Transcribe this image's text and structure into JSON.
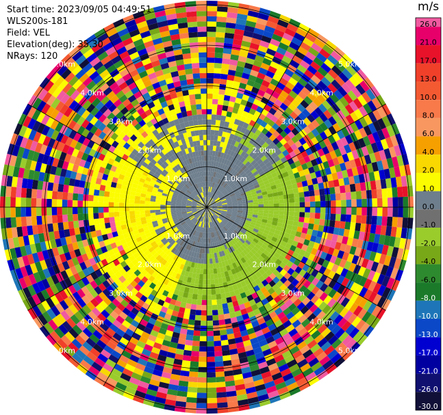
{
  "info": {
    "start_time": "Start time: 2023/09/05 04:49:51",
    "instrument": "WLS200s-181",
    "field": "Field: VEL",
    "elevation": "Elevation(deg): 35.30",
    "nrays": "NRays: 120"
  },
  "colorbar": {
    "title": "m/s",
    "ticks": [
      "26.0",
      "21.0",
      "17.0",
      "13.0",
      "10.0",
      "8.0",
      "6.0",
      "4.0",
      "2.0",
      "1.0",
      "0.0",
      "-1.0",
      "-2.0",
      "-4.0",
      "-6.0",
      "-8.0",
      "-10.0",
      "-13.0",
      "-17.0",
      "-21.0",
      "-26.0",
      "-30.0"
    ],
    "colors": [
      "#f05aa0",
      "#e8006a",
      "#e8122a",
      "#f0402a",
      "#f45a32",
      "#f87a4a",
      "#f89860",
      "#f6a000",
      "#f8d800",
      "#fcfc00",
      "#6e7e8c",
      "#707070",
      "#9acc2c",
      "#78a818",
      "#2e8a2e",
      "#1a7a2a",
      "#1e76b8",
      "#0a48c8",
      "#0000d0",
      "#0000a0",
      "#101070",
      "#101038"
    ]
  },
  "chart_data": {
    "type": "heatmap",
    "projection": "polar-ppi",
    "n_rays": 120,
    "range_rings_km": [
      1.0,
      2.0,
      3.0,
      4.0,
      5.0
    ],
    "ring_labels": [
      "1.0km",
      "2.0km",
      "3.0km",
      "4.0km",
      "5.0km"
    ],
    "max_range_km": 5.1,
    "value_unit": "m/s",
    "value_range": [
      -30,
      26
    ],
    "field": "VEL",
    "regions": [
      {
        "description": "near-field low velocity",
        "range_km": [
          0,
          1.5
        ],
        "value": 0.0
      },
      {
        "description": "southeast/south sector light negative",
        "range_km": [
          1.0,
          2.3
        ],
        "azimuth_deg": [
          60,
          200
        ],
        "value": -2.0
      },
      {
        "description": "northwest sector light positive",
        "range_km": [
          1.0,
          2.8
        ],
        "azimuth_deg": [
          200,
          360
        ],
        "value": 2.0
      },
      {
        "description": "outer ranges noisy / aliased",
        "range_km": [
          2.8,
          5.1
        ],
        "value": "noise"
      }
    ]
  }
}
